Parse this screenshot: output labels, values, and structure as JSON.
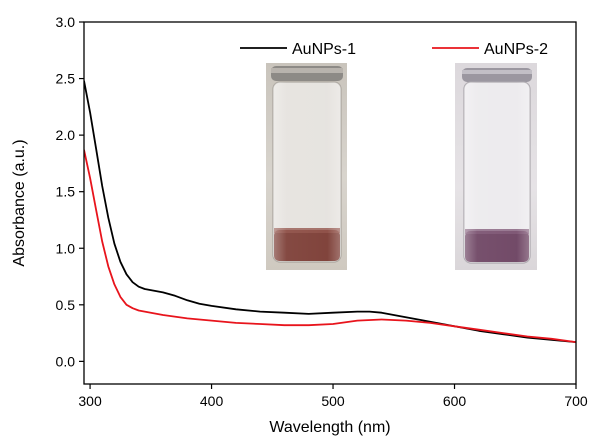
{
  "chart_data": {
    "type": "line",
    "title": "",
    "xlabel": "Wavelength (nm)",
    "ylabel": "Absorbance (a.u.)",
    "xlim": [
      295,
      700
    ],
    "ylim": [
      -0.2,
      3.0
    ],
    "xticks": [
      300,
      400,
      500,
      600,
      700
    ],
    "yticks": [
      0.0,
      0.5,
      1.0,
      1.5,
      2.0,
      2.5,
      3.0
    ],
    "xtick_labels": [
      "300",
      "400",
      "500",
      "600",
      "700"
    ],
    "ytick_labels": [
      "0.0",
      "0.5",
      "1.0",
      "1.5",
      "2.0",
      "2.5",
      "3.0"
    ],
    "grid": false,
    "legend_position": "top-right",
    "series": [
      {
        "name": "AuNPs-1",
        "color": "#000000",
        "points": [
          [
            295,
            2.48
          ],
          [
            300,
            2.2
          ],
          [
            305,
            1.88
          ],
          [
            310,
            1.55
          ],
          [
            315,
            1.27
          ],
          [
            320,
            1.04
          ],
          [
            325,
            0.88
          ],
          [
            330,
            0.77
          ],
          [
            335,
            0.7
          ],
          [
            340,
            0.66
          ],
          [
            345,
            0.64
          ],
          [
            350,
            0.63
          ],
          [
            360,
            0.61
          ],
          [
            370,
            0.58
          ],
          [
            380,
            0.54
          ],
          [
            390,
            0.51
          ],
          [
            400,
            0.49
          ],
          [
            420,
            0.46
          ],
          [
            440,
            0.44
          ],
          [
            460,
            0.43
          ],
          [
            480,
            0.42
          ],
          [
            500,
            0.43
          ],
          [
            520,
            0.44
          ],
          [
            530,
            0.44
          ],
          [
            540,
            0.43
          ],
          [
            560,
            0.39
          ],
          [
            580,
            0.35
          ],
          [
            600,
            0.31
          ],
          [
            620,
            0.27
          ],
          [
            640,
            0.24
          ],
          [
            660,
            0.21
          ],
          [
            680,
            0.19
          ],
          [
            700,
            0.17
          ]
        ]
      },
      {
        "name": "AuNPs-2",
        "color": "#e8141c",
        "points": [
          [
            295,
            1.87
          ],
          [
            300,
            1.62
          ],
          [
            305,
            1.34
          ],
          [
            310,
            1.06
          ],
          [
            315,
            0.84
          ],
          [
            320,
            0.68
          ],
          [
            325,
            0.57
          ],
          [
            330,
            0.5
          ],
          [
            335,
            0.47
          ],
          [
            340,
            0.45
          ],
          [
            350,
            0.43
          ],
          [
            360,
            0.41
          ],
          [
            380,
            0.38
          ],
          [
            400,
            0.36
          ],
          [
            420,
            0.34
          ],
          [
            440,
            0.33
          ],
          [
            460,
            0.32
          ],
          [
            480,
            0.32
          ],
          [
            500,
            0.33
          ],
          [
            520,
            0.36
          ],
          [
            540,
            0.37
          ],
          [
            560,
            0.36
          ],
          [
            580,
            0.34
          ],
          [
            600,
            0.31
          ],
          [
            620,
            0.28
          ],
          [
            640,
            0.25
          ],
          [
            660,
            0.22
          ],
          [
            680,
            0.2
          ],
          [
            700,
            0.17
          ]
        ]
      }
    ],
    "inset_images": [
      {
        "label": "AuNPs-1 vial",
        "liquid_color": "#7a3a32"
      },
      {
        "label": "AuNPs-2 vial",
        "liquid_color": "#6b4160"
      }
    ]
  }
}
